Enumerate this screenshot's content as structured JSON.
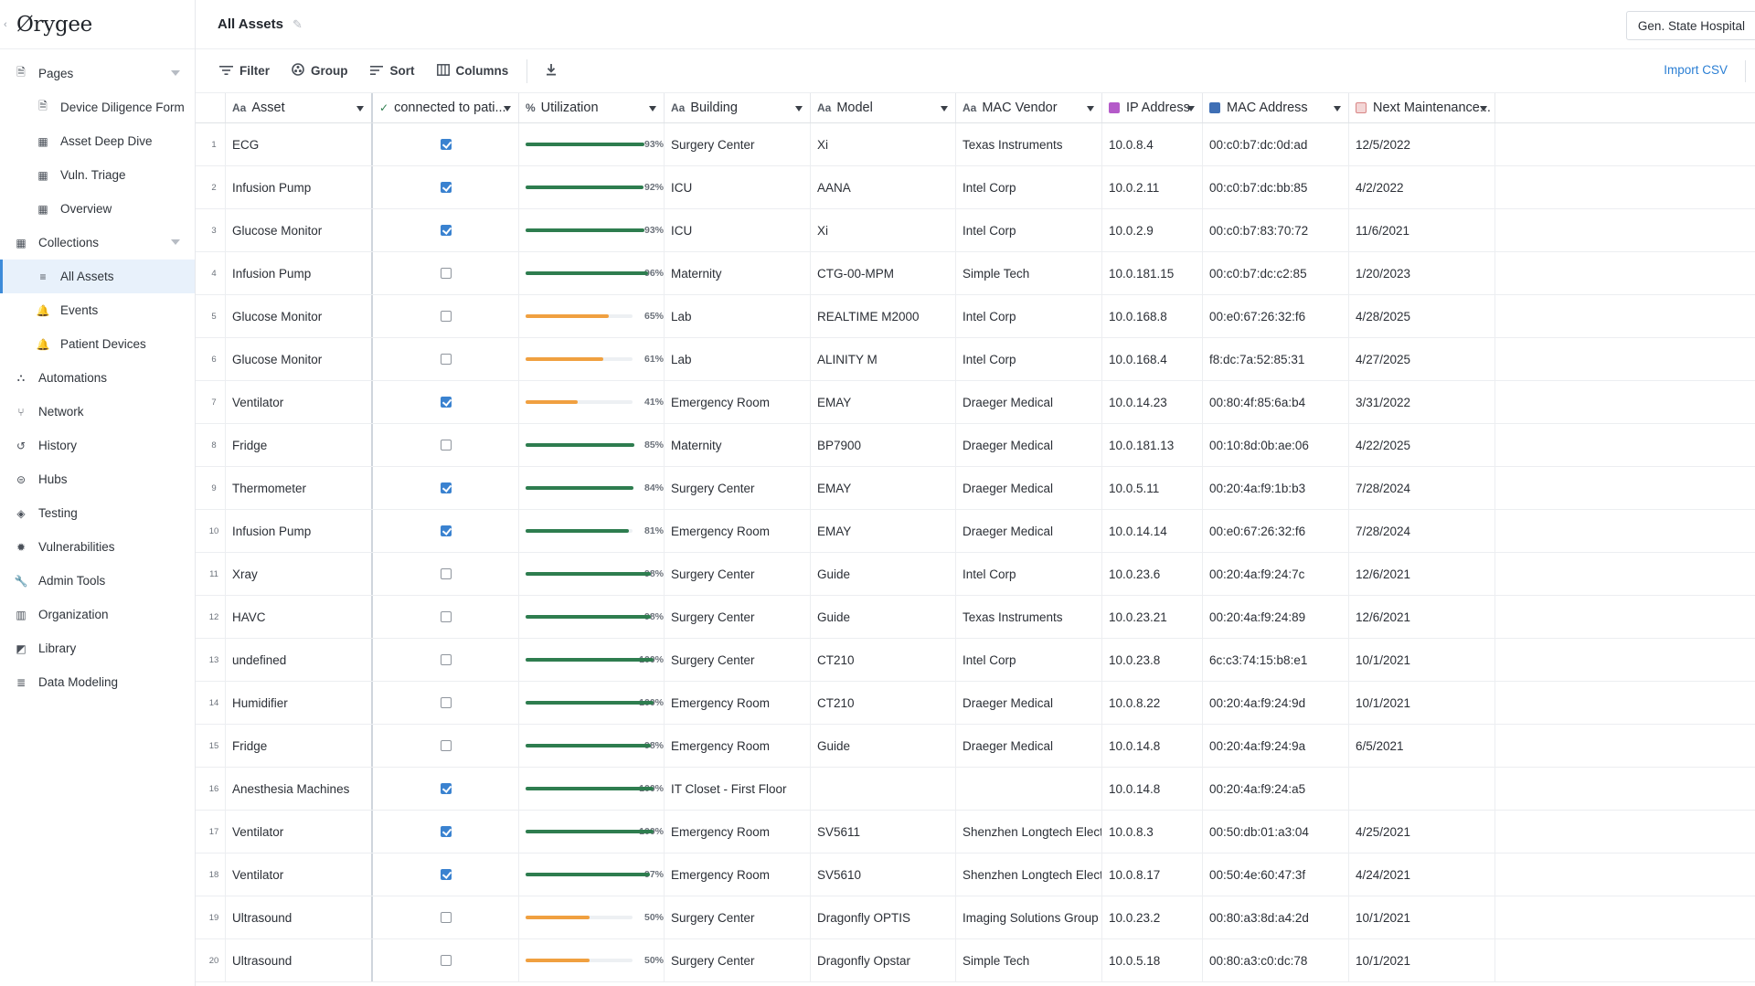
{
  "sidebar": {
    "logo": "Ørygee",
    "items": [
      {
        "label": "Pages",
        "icon": "page-icon",
        "level": 0,
        "caret": true
      },
      {
        "label": "Device Diligence Form",
        "icon": "page-icon",
        "level": 1
      },
      {
        "label": "Asset Deep Dive",
        "icon": "grid-icon",
        "level": 1
      },
      {
        "label": "Vuln. Triage",
        "icon": "grid-icon",
        "level": 1
      },
      {
        "label": "Overview",
        "icon": "grid-icon",
        "level": 1
      },
      {
        "label": "Collections",
        "icon": "table-icon",
        "level": 0,
        "caret": true
      },
      {
        "label": "All Assets",
        "icon": "list-icon",
        "level": 1,
        "active": true
      },
      {
        "label": "Events",
        "icon": "bell-icon",
        "level": 1
      },
      {
        "label": "Patient Devices",
        "icon": "bell-icon",
        "level": 1
      },
      {
        "label": "Automations",
        "icon": "automation-icon",
        "level": 0
      },
      {
        "label": "Network",
        "icon": "network-icon",
        "level": 0
      },
      {
        "label": "History",
        "icon": "history-icon",
        "level": 0
      },
      {
        "label": "Hubs",
        "icon": "hub-icon",
        "level": 0
      },
      {
        "label": "Testing",
        "icon": "testing-icon",
        "level": 0
      },
      {
        "label": "Vulnerabilities",
        "icon": "bug-icon",
        "level": 0
      },
      {
        "label": "Admin Tools",
        "icon": "wrench-icon",
        "level": 0
      },
      {
        "label": "Organization",
        "icon": "building-icon",
        "level": 0
      },
      {
        "label": "Library",
        "icon": "library-icon",
        "level": 0
      },
      {
        "label": "Data Modeling",
        "icon": "database-icon",
        "level": 0
      }
    ]
  },
  "header": {
    "title": "All Assets",
    "org": "Gen. State Hospital"
  },
  "toolbar": {
    "filter": "Filter",
    "group": "Group",
    "sort": "Sort",
    "columns": "Columns",
    "import": "Import CSV"
  },
  "colors": {
    "green": "#2e7d4f",
    "orange": "#f0a040",
    "accent": "#3a82d0"
  },
  "table": {
    "columns": [
      {
        "key": "asset",
        "label": "Asset",
        "type_icon": "Aa"
      },
      {
        "key": "connected",
        "label": "connected to pati...",
        "type_icon": "✓"
      },
      {
        "key": "util",
        "label": "Utilization",
        "type_icon": "%"
      },
      {
        "key": "building",
        "label": "Building",
        "type_icon": "Aa"
      },
      {
        "key": "model",
        "label": "Model",
        "type_icon": "Aa"
      },
      {
        "key": "vendor",
        "label": "MAC Vendor",
        "type_icon": "Aa"
      },
      {
        "key": "ip",
        "label": "IP Address",
        "type_icon": "ip"
      },
      {
        "key": "mac",
        "label": "MAC Address",
        "type_icon": "mac"
      },
      {
        "key": "next",
        "label": "Next Maintenance...",
        "type_icon": "cal"
      }
    ],
    "rows": [
      {
        "n": "1",
        "asset": "ECG",
        "connected": true,
        "util": 93,
        "building": "Surgery Center",
        "model": "Xi",
        "vendor": "Texas Instruments",
        "ip": "10.0.8.4",
        "mac": "00:c0:b7:dc:0d:ad",
        "next": "12/5/2022"
      },
      {
        "n": "2",
        "asset": "Infusion Pump",
        "connected": true,
        "util": 92,
        "building": "ICU",
        "model": "AANA",
        "vendor": "Intel Corp",
        "ip": "10.0.2.11",
        "mac": "00:c0:b7:dc:bb:85",
        "next": "4/2/2022"
      },
      {
        "n": "3",
        "asset": "Glucose Monitor",
        "connected": true,
        "util": 93,
        "building": "ICU",
        "model": "Xi",
        "vendor": "Intel Corp",
        "ip": "10.0.2.9",
        "mac": "00:c0:b7:83:70:72",
        "next": "11/6/2021"
      },
      {
        "n": "4",
        "asset": "Infusion Pump",
        "connected": false,
        "util": 96,
        "building": "Maternity",
        "model": "CTG-00-MPM",
        "vendor": "Simple Tech",
        "ip": "10.0.181.15",
        "mac": "00:c0:b7:dc:c2:85",
        "next": "1/20/2023"
      },
      {
        "n": "5",
        "asset": "Glucose Monitor",
        "connected": false,
        "util": 65,
        "building": "Lab",
        "model": "REALTIME M2000",
        "vendor": "Intel Corp",
        "ip": "10.0.168.8",
        "mac": "00:e0:67:26:32:f6",
        "next": "4/28/2025"
      },
      {
        "n": "6",
        "asset": "Glucose Monitor",
        "connected": false,
        "util": 61,
        "building": "Lab",
        "model": "ALINITY M",
        "vendor": "Intel Corp",
        "ip": "10.0.168.4",
        "mac": "f8:dc:7a:52:85:31",
        "next": "4/27/2025"
      },
      {
        "n": "7",
        "asset": "Ventilator",
        "connected": true,
        "util": 41,
        "building": "Emergency Room",
        "model": "EMAY",
        "vendor": "Draeger Medical",
        "ip": "10.0.14.23",
        "mac": "00:80:4f:85:6a:b4",
        "next": "3/31/2022"
      },
      {
        "n": "8",
        "asset": "Fridge",
        "connected": false,
        "util": 85,
        "building": "Maternity",
        "model": "BP7900",
        "vendor": "Draeger Medical",
        "ip": "10.0.181.13",
        "mac": "00:10:8d:0b:ae:06",
        "next": "4/22/2025"
      },
      {
        "n": "9",
        "asset": "Thermometer",
        "connected": true,
        "util": 84,
        "building": "Surgery Center",
        "model": "EMAY",
        "vendor": "Draeger Medical",
        "ip": "10.0.5.11",
        "mac": "00:20:4a:f9:1b:b3",
        "next": "7/28/2024"
      },
      {
        "n": "10",
        "asset": "Infusion Pump",
        "connected": true,
        "util": 81,
        "building": "Emergency Room",
        "model": "EMAY",
        "vendor": "Draeger Medical",
        "ip": "10.0.14.14",
        "mac": "00:e0:67:26:32:f6",
        "next": "7/28/2024"
      },
      {
        "n": "11",
        "asset": "Xray",
        "connected": false,
        "util": 98,
        "building": "Surgery Center",
        "model": "Guide",
        "vendor": "Intel Corp",
        "ip": "10.0.23.6",
        "mac": "00:20:4a:f9:24:7c",
        "next": "12/6/2021"
      },
      {
        "n": "12",
        "asset": "HAVC",
        "connected": false,
        "util": 98,
        "building": "Surgery Center",
        "model": "Guide",
        "vendor": "Texas Instruments",
        "ip": "10.0.23.21",
        "mac": "00:20:4a:f9:24:89",
        "next": "12/6/2021"
      },
      {
        "n": "13",
        "asset": "undefined",
        "connected": false,
        "util": 100,
        "building": "Surgery Center",
        "model": "CT210",
        "vendor": "Intel Corp",
        "ip": "10.0.23.8",
        "mac": "6c:c3:74:15:b8:e1",
        "next": "10/1/2021"
      },
      {
        "n": "14",
        "asset": "Humidifier",
        "connected": false,
        "util": 100,
        "building": "Emergency Room",
        "model": "CT210",
        "vendor": "Draeger Medical",
        "ip": "10.0.8.22",
        "mac": "00:20:4a:f9:24:9d",
        "next": "10/1/2021"
      },
      {
        "n": "15",
        "asset": "Fridge",
        "connected": false,
        "util": 98,
        "building": "Emergency Room",
        "model": "Guide",
        "vendor": "Draeger Medical",
        "ip": "10.0.14.8",
        "mac": "00:20:4a:f9:24:9a",
        "next": "6/5/2021"
      },
      {
        "n": "16",
        "asset": "Anesthesia Machines",
        "connected": true,
        "util": 100,
        "building": "IT Closet - First Floor",
        "model": "",
        "vendor": "",
        "ip": "10.0.14.8",
        "mac": "00:20:4a:f9:24:a5",
        "next": ""
      },
      {
        "n": "17",
        "asset": "Ventilator",
        "connected": true,
        "util": 100,
        "building": "Emergency Room",
        "model": "SV5611",
        "vendor": "Shenzhen Longtech Electronics",
        "ip": "10.0.8.3",
        "mac": "00:50:db:01:a3:04",
        "next": "4/25/2021"
      },
      {
        "n": "18",
        "asset": "Ventilator",
        "connected": true,
        "util": 97,
        "building": "Emergency Room",
        "model": "SV5610",
        "vendor": "Shenzhen Longtech Electronics",
        "ip": "10.0.8.17",
        "mac": "00:50:4e:60:47:3f",
        "next": "4/24/2021"
      },
      {
        "n": "19",
        "asset": "Ultrasound",
        "connected": false,
        "util": 50,
        "building": "Surgery Center",
        "model": "Dragonfly OPTIS",
        "vendor": "Imaging Solutions Group",
        "ip": "10.0.23.2",
        "mac": "00:80:a3:8d:a4:2d",
        "next": "10/1/2021"
      },
      {
        "n": "20",
        "asset": "Ultrasound",
        "connected": false,
        "util": 50,
        "building": "Surgery Center",
        "model": "Dragonfly Opstar",
        "vendor": "Simple Tech",
        "ip": "10.0.5.18",
        "mac": "00:80:a3:c0:dc:78",
        "next": "10/1/2021"
      }
    ]
  }
}
